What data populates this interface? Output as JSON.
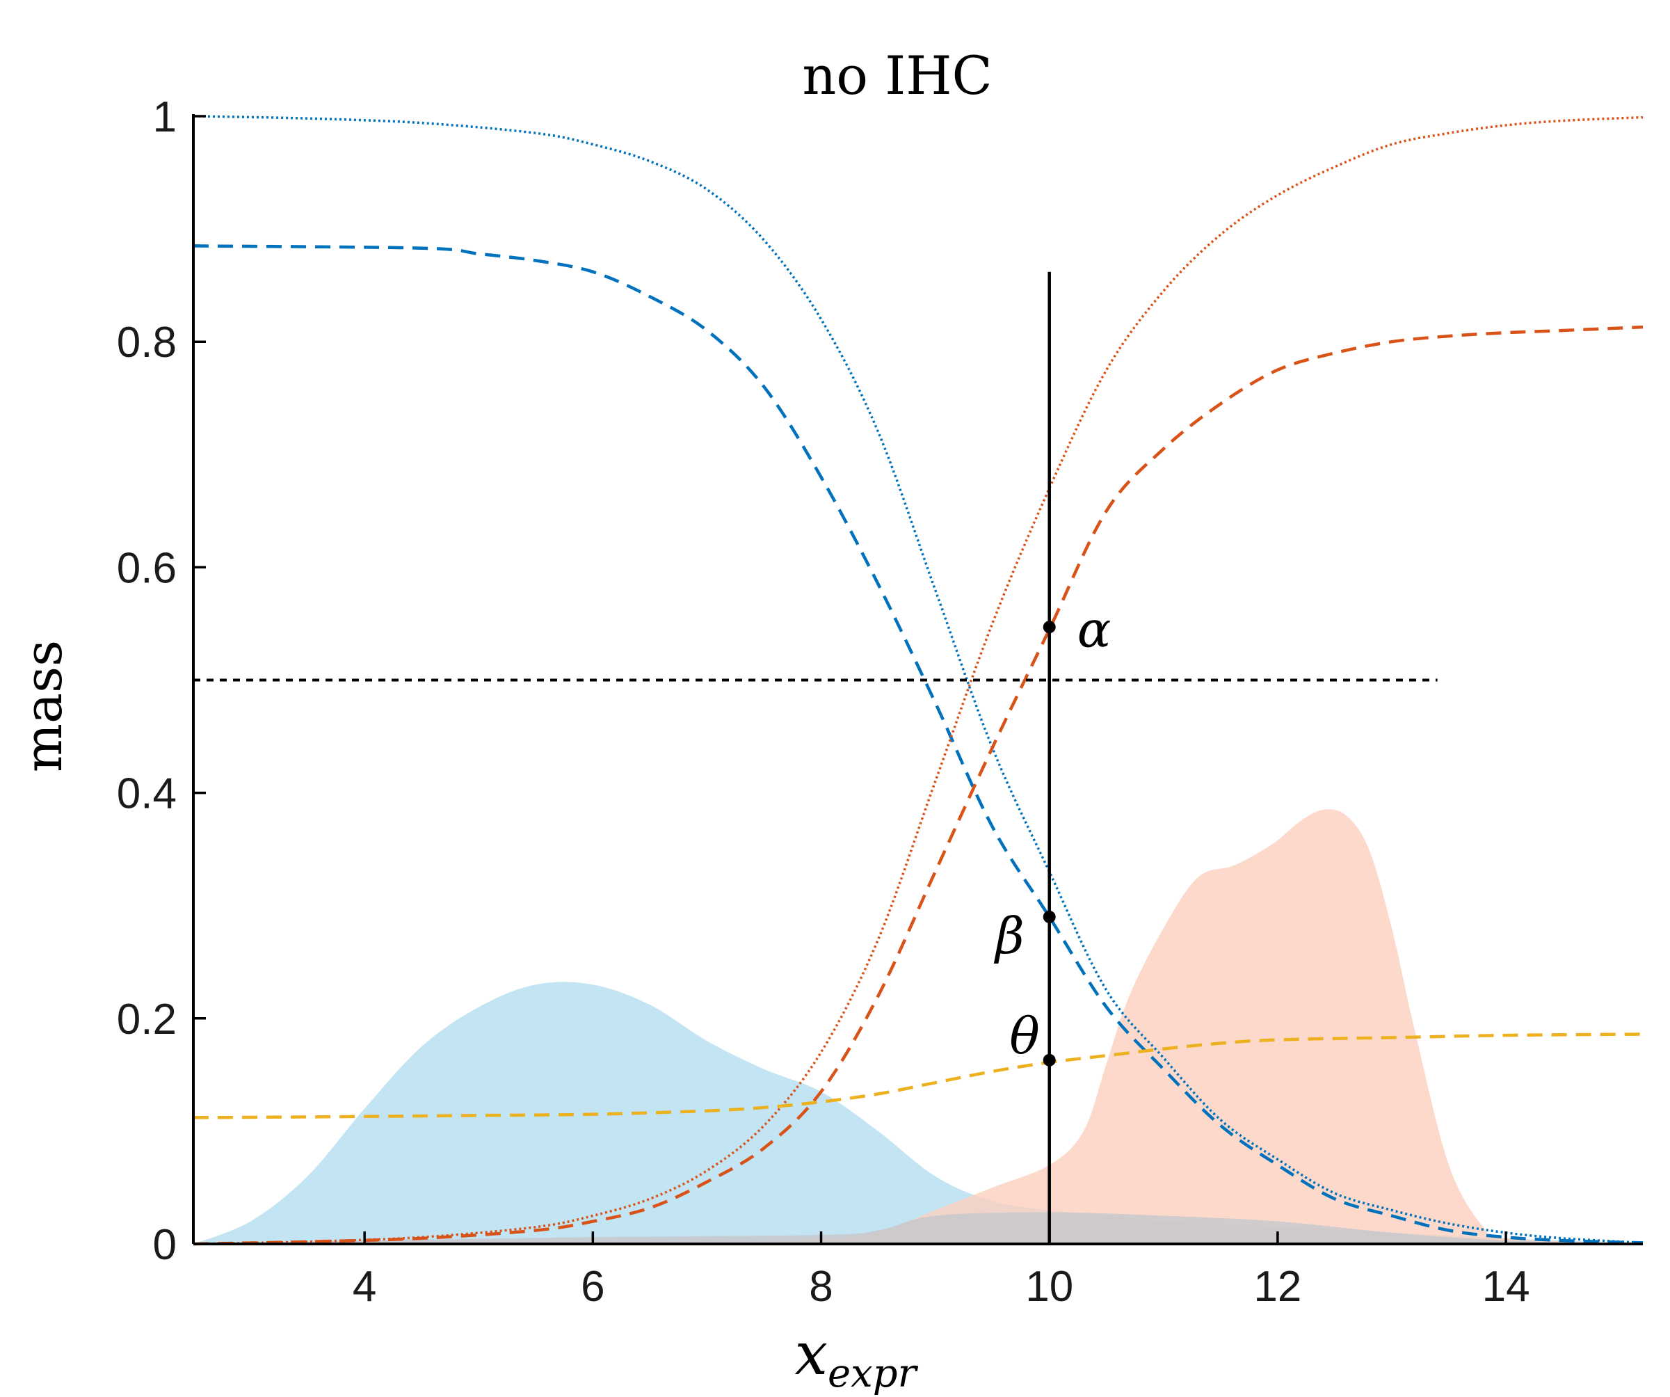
{
  "chart_data": {
    "type": "line",
    "title": "no IHC",
    "xlabel": {
      "base": "x",
      "subscript": "expr"
    },
    "ylabel": "mass",
    "xlim": [
      2.5,
      15.2
    ],
    "ylim": [
      0,
      1
    ],
    "xticks": [
      4,
      6,
      8,
      10,
      12,
      14
    ],
    "yticks": [
      0,
      0.2,
      0.4,
      0.6,
      0.8,
      1
    ],
    "ytick_labels": [
      "0",
      "0.2",
      "0.4",
      "0.6",
      "0.8",
      "1"
    ],
    "grid": false,
    "legend": "none",
    "colors": {
      "blue_line": "#0072BD",
      "orange_line": "#D95319",
      "yellow_line": "#EDB120",
      "blue_fill": "#B3DDF0",
      "orange_fill": "#FCCFBE",
      "gray_fill": "#C8C8CC"
    },
    "series": [
      {
        "style": "dotted",
        "color": "blue",
        "x": [
          2.5,
          3.5,
          4.5,
          5.5,
          6.0,
          6.5,
          7.0,
          7.5,
          8.0,
          8.5,
          9.0,
          9.5,
          10.0,
          10.5,
          11.0,
          11.5,
          12.0,
          12.5,
          13.0,
          13.5,
          14.0,
          14.5,
          15.2
        ],
        "y": [
          1.0,
          0.998,
          0.994,
          0.985,
          0.975,
          0.96,
          0.935,
          0.89,
          0.82,
          0.72,
          0.58,
          0.44,
          0.33,
          0.225,
          0.165,
          0.11,
          0.075,
          0.045,
          0.03,
          0.018,
          0.01,
          0.005,
          0.001
        ]
      },
      {
        "style": "dashed",
        "color": "blue",
        "x": [
          2.5,
          4.5,
          5.0,
          5.5,
          6.0,
          6.5,
          7.0,
          7.5,
          8.0,
          8.5,
          9.0,
          9.5,
          10.0,
          10.5,
          11.0,
          11.5,
          12.0,
          12.5,
          13.0,
          13.5,
          14.0,
          14.5,
          15.2
        ],
        "y": [
          0.885,
          0.883,
          0.878,
          0.872,
          0.862,
          0.84,
          0.81,
          0.76,
          0.68,
          0.585,
          0.48,
          0.37,
          0.29,
          0.21,
          0.155,
          0.105,
          0.07,
          0.04,
          0.025,
          0.012,
          0.006,
          0.003,
          0.001
        ]
      },
      {
        "style": "dotted",
        "color": "orange",
        "x": [
          2.5,
          3.5,
          4.5,
          5.5,
          6.0,
          6.5,
          7.0,
          7.5,
          8.0,
          8.5,
          9.0,
          9.5,
          10.0,
          10.5,
          11.0,
          11.5,
          12.0,
          12.5,
          13.0,
          13.5,
          14.0,
          14.5,
          15.2
        ],
        "y": [
          0.0,
          0.002,
          0.006,
          0.015,
          0.025,
          0.04,
          0.065,
          0.105,
          0.17,
          0.27,
          0.41,
          0.55,
          0.67,
          0.775,
          0.845,
          0.895,
          0.93,
          0.955,
          0.975,
          0.985,
          0.992,
          0.996,
          0.999
        ]
      },
      {
        "style": "dashed",
        "color": "orange",
        "x": [
          2.5,
          3.5,
          4.5,
          5.5,
          6.0,
          6.5,
          7.0,
          7.5,
          8.0,
          8.5,
          9.0,
          9.5,
          10.0,
          10.5,
          11.0,
          11.5,
          12.0,
          12.5,
          13.0,
          13.5,
          14.0,
          14.5,
          15.2
        ],
        "y": [
          0.0,
          0.002,
          0.005,
          0.012,
          0.02,
          0.032,
          0.055,
          0.085,
          0.135,
          0.22,
          0.33,
          0.44,
          0.545,
          0.65,
          0.705,
          0.745,
          0.775,
          0.79,
          0.8,
          0.805,
          0.808,
          0.81,
          0.813
        ]
      },
      {
        "style": "dashed",
        "color": "yellow",
        "x": [
          2.5,
          4.0,
          5.0,
          6.0,
          7.0,
          7.5,
          8.0,
          8.5,
          9.0,
          9.5,
          10.0,
          10.5,
          11.0,
          11.5,
          12.0,
          13.0,
          14.0,
          15.2
        ],
        "y": [
          0.112,
          0.113,
          0.114,
          0.115,
          0.118,
          0.121,
          0.126,
          0.133,
          0.143,
          0.153,
          0.161,
          0.167,
          0.173,
          0.178,
          0.181,
          0.183,
          0.185,
          0.186
        ]
      },
      {
        "style": "dotted",
        "color": "black",
        "x": [
          2.5,
          13.4
        ],
        "y": [
          0.5,
          0.5
        ]
      },
      {
        "style": "solid",
        "color": "black",
        "x": [
          10,
          10
        ],
        "y": [
          0,
          0.862
        ]
      }
    ],
    "areas": [
      {
        "color": "blue",
        "x": [
          2.5,
          3.0,
          3.5,
          4.0,
          4.5,
          5.0,
          5.5,
          6.0,
          6.5,
          7.0,
          7.5,
          8.0,
          8.5,
          9.0,
          9.5,
          10.0,
          10.5,
          11.0,
          12.0,
          13.0,
          14.0,
          15.2
        ],
        "y": [
          0.0,
          0.02,
          0.06,
          0.12,
          0.175,
          0.21,
          0.23,
          0.23,
          0.212,
          0.18,
          0.155,
          0.135,
          0.1,
          0.06,
          0.038,
          0.03,
          0.025,
          0.02,
          0.015,
          0.01,
          0.005,
          0.0
        ]
      },
      {
        "color": "orange",
        "x": [
          2.5,
          7.0,
          8.0,
          8.5,
          9.0,
          9.5,
          10.0,
          10.3,
          10.5,
          10.7,
          11.0,
          11.3,
          11.6,
          11.8,
          12.0,
          12.2,
          12.4,
          12.6,
          12.8,
          13.0,
          13.2,
          13.5,
          13.8,
          14.0,
          15.2
        ],
        "y": [
          0.0,
          0.0,
          0.005,
          0.01,
          0.03,
          0.05,
          0.07,
          0.1,
          0.16,
          0.22,
          0.28,
          0.325,
          0.335,
          0.345,
          0.358,
          0.375,
          0.385,
          0.38,
          0.35,
          0.28,
          0.19,
          0.07,
          0.015,
          0.005,
          0.0
        ]
      },
      {
        "color": "gray",
        "x": [
          2.5,
          4.0,
          6.0,
          8.0,
          8.5,
          9.0,
          10.0,
          11.0,
          12.0,
          13.0,
          14.0,
          15.2
        ],
        "y": [
          0.0,
          0.003,
          0.006,
          0.008,
          0.012,
          0.025,
          0.028,
          0.025,
          0.02,
          0.01,
          0.003,
          0.0
        ]
      }
    ],
    "annotations": [
      {
        "text": "α",
        "x": 10,
        "y": 0.547
      },
      {
        "text": "β",
        "x": 10,
        "y": 0.29
      },
      {
        "text": "θ",
        "x": 10,
        "y": 0.163
      }
    ]
  }
}
